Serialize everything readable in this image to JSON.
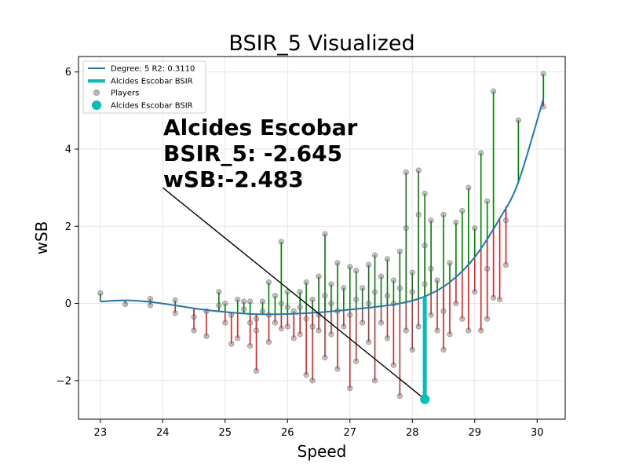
{
  "chart_data": {
    "type": "scatter",
    "title": "BSIR_5 Visualized",
    "xlabel": "Speed",
    "ylabel": "wSB",
    "xlim": [
      22.65,
      30.45
    ],
    "ylim": [
      -3.0,
      6.4
    ],
    "x_ticks": [
      23,
      24,
      25,
      26,
      27,
      28,
      29,
      30
    ],
    "y_ticks": [
      -2,
      0,
      2,
      4,
      6
    ],
    "x_tick_labels": [
      "23",
      "24",
      "25",
      "26",
      "27",
      "28",
      "29",
      "30"
    ],
    "y_tick_labels": [
      "−2",
      "0",
      "2",
      "4",
      "6"
    ],
    "grid": true,
    "legend_position": "top-left",
    "legend": [
      {
        "label": "Degree: 5 R2: 0.3110",
        "kind": "line",
        "color": "#1f77b4"
      },
      {
        "label": "Alcides Escobar BSIR",
        "kind": "thick-line",
        "color": "#00bfbf"
      },
      {
        "label": "Players",
        "kind": "marker",
        "color": "#808080"
      },
      {
        "label": "Alcides Escobar BSIR",
        "kind": "big-marker",
        "color": "#00bfbf"
      }
    ],
    "fit_curve": {
      "name": "Degree: 5 R2: 0.3110",
      "color": "#1f77b4",
      "x": [
        23.0,
        23.4,
        23.8,
        24.2,
        24.6,
        25.0,
        25.4,
        25.8,
        26.2,
        26.6,
        27.0,
        27.4,
        27.8,
        28.2,
        28.6,
        29.0,
        29.4,
        29.7,
        30.1
      ],
      "y": [
        0.05,
        0.08,
        0.04,
        -0.05,
        -0.15,
        -0.22,
        -0.27,
        -0.28,
        -0.26,
        -0.22,
        -0.16,
        -0.09,
        0.0,
        0.18,
        0.55,
        1.2,
        2.2,
        3.15,
        5.3
      ]
    },
    "highlight": {
      "annotation_lines": [
        "Alcides Escobar",
        "BSIR_5: -2.645",
        "wSB:-2.483"
      ],
      "point": {
        "x": 28.2,
        "y": -2.483
      },
      "fit_y": 0.17,
      "arrow_start": {
        "x": 24.0,
        "y": 3.0
      },
      "color": "#00bfbf"
    },
    "players": [
      {
        "x": 23.0,
        "y": 0.27
      },
      {
        "x": 23.4,
        "y": -0.02
      },
      {
        "x": 23.8,
        "y": 0.12
      },
      {
        "x": 23.8,
        "y": -0.05
      },
      {
        "x": 24.2,
        "y": 0.08
      },
      {
        "x": 24.2,
        "y": -0.25
      },
      {
        "x": 24.5,
        "y": -0.35
      },
      {
        "x": 24.5,
        "y": -0.7
      },
      {
        "x": 24.7,
        "y": -0.2
      },
      {
        "x": 24.7,
        "y": -0.85
      },
      {
        "x": 24.9,
        "y": 0.3
      },
      {
        "x": 24.9,
        "y": -0.05
      },
      {
        "x": 25.0,
        "y": -0.5
      },
      {
        "x": 25.0,
        "y": 0.0
      },
      {
        "x": 25.1,
        "y": -1.05
      },
      {
        "x": 25.1,
        "y": -0.3
      },
      {
        "x": 25.2,
        "y": 0.1
      },
      {
        "x": 25.2,
        "y": -0.9
      },
      {
        "x": 25.3,
        "y": 0.05
      },
      {
        "x": 25.3,
        "y": -0.15
      },
      {
        "x": 25.4,
        "y": -0.5
      },
      {
        "x": 25.4,
        "y": 0.05
      },
      {
        "x": 25.4,
        "y": -1.1
      },
      {
        "x": 25.5,
        "y": -0.4
      },
      {
        "x": 25.5,
        "y": -1.75
      },
      {
        "x": 25.5,
        "y": -0.7
      },
      {
        "x": 25.6,
        "y": 0.05
      },
      {
        "x": 25.6,
        "y": -0.2
      },
      {
        "x": 25.7,
        "y": 0.55
      },
      {
        "x": 25.7,
        "y": -0.3
      },
      {
        "x": 25.7,
        "y": -1.0
      },
      {
        "x": 25.8,
        "y": 0.2
      },
      {
        "x": 25.8,
        "y": -0.5
      },
      {
        "x": 25.9,
        "y": 1.6
      },
      {
        "x": 25.9,
        "y": -0.65
      },
      {
        "x": 25.9,
        "y": 0.0
      },
      {
        "x": 26.0,
        "y": -0.1
      },
      {
        "x": 26.0,
        "y": 0.3
      },
      {
        "x": 26.0,
        "y": -0.6
      },
      {
        "x": 26.1,
        "y": -0.2
      },
      {
        "x": 26.1,
        "y": -0.9
      },
      {
        "x": 26.2,
        "y": -0.1
      },
      {
        "x": 26.2,
        "y": 0.3
      },
      {
        "x": 26.2,
        "y": -0.8
      },
      {
        "x": 26.3,
        "y": 0.55
      },
      {
        "x": 26.3,
        "y": -1.85
      },
      {
        "x": 26.3,
        "y": -0.4
      },
      {
        "x": 26.4,
        "y": -2.0
      },
      {
        "x": 26.4,
        "y": 0.1
      },
      {
        "x": 26.4,
        "y": -0.6
      },
      {
        "x": 26.5,
        "y": 0.7
      },
      {
        "x": 26.5,
        "y": -0.3
      },
      {
        "x": 26.5,
        "y": -0.7
      },
      {
        "x": 26.6,
        "y": 1.8
      },
      {
        "x": 26.6,
        "y": 0.2
      },
      {
        "x": 26.6,
        "y": -1.4
      },
      {
        "x": 26.7,
        "y": 0.0
      },
      {
        "x": 26.7,
        "y": -0.8
      },
      {
        "x": 26.7,
        "y": 0.5
      },
      {
        "x": 26.8,
        "y": 1.05
      },
      {
        "x": 26.8,
        "y": -0.2
      },
      {
        "x": 26.8,
        "y": -1.7
      },
      {
        "x": 26.9,
        "y": 0.4
      },
      {
        "x": 26.9,
        "y": -0.6
      },
      {
        "x": 27.0,
        "y": 0.95
      },
      {
        "x": 27.0,
        "y": -2.2
      },
      {
        "x": 27.0,
        "y": -0.3
      },
      {
        "x": 27.1,
        "y": 0.85
      },
      {
        "x": 27.1,
        "y": -1.5
      },
      {
        "x": 27.1,
        "y": 0.1
      },
      {
        "x": 27.2,
        "y": -0.5
      },
      {
        "x": 27.2,
        "y": 0.4
      },
      {
        "x": 27.3,
        "y": 1.0
      },
      {
        "x": 27.3,
        "y": -1.0
      },
      {
        "x": 27.3,
        "y": 0.0
      },
      {
        "x": 27.4,
        "y": 1.25
      },
      {
        "x": 27.4,
        "y": -2.0
      },
      {
        "x": 27.4,
        "y": 0.3
      },
      {
        "x": 27.5,
        "y": -0.5
      },
      {
        "x": 27.5,
        "y": 0.7
      },
      {
        "x": 27.6,
        "y": 1.15
      },
      {
        "x": 27.6,
        "y": -0.9
      },
      {
        "x": 27.6,
        "y": 0.2
      },
      {
        "x": 27.7,
        "y": 0.6
      },
      {
        "x": 27.7,
        "y": -1.6
      },
      {
        "x": 27.7,
        "y": 0.0
      },
      {
        "x": 27.8,
        "y": 1.35
      },
      {
        "x": 27.8,
        "y": -2.4
      },
      {
        "x": 27.8,
        "y": 0.4
      },
      {
        "x": 27.9,
        "y": 3.4
      },
      {
        "x": 27.9,
        "y": -0.7
      },
      {
        "x": 27.9,
        "y": 1.95
      },
      {
        "x": 28.0,
        "y": 0.3
      },
      {
        "x": 28.0,
        "y": -1.2
      },
      {
        "x": 28.0,
        "y": 0.8
      },
      {
        "x": 28.1,
        "y": 3.45
      },
      {
        "x": 28.1,
        "y": 2.3
      },
      {
        "x": 28.1,
        "y": -0.6
      },
      {
        "x": 28.2,
        "y": 2.85
      },
      {
        "x": 28.2,
        "y": 1.5
      },
      {
        "x": 28.2,
        "y": 0.5
      },
      {
        "x": 28.3,
        "y": 2.15
      },
      {
        "x": 28.3,
        "y": 0.9
      },
      {
        "x": 28.3,
        "y": -0.3
      },
      {
        "x": 28.4,
        "y": -0.7
      },
      {
        "x": 28.4,
        "y": 0.6
      },
      {
        "x": 28.5,
        "y": 2.3
      },
      {
        "x": 28.5,
        "y": -1.2
      },
      {
        "x": 28.5,
        "y": -0.2
      },
      {
        "x": 28.6,
        "y": 1.05
      },
      {
        "x": 28.6,
        "y": -0.8
      },
      {
        "x": 28.7,
        "y": 2.1
      },
      {
        "x": 28.7,
        "y": 0.0
      },
      {
        "x": 28.8,
        "y": 2.4
      },
      {
        "x": 28.8,
        "y": -0.4
      },
      {
        "x": 28.9,
        "y": 3.0
      },
      {
        "x": 28.9,
        "y": -0.7
      },
      {
        "x": 29.0,
        "y": 1.95
      },
      {
        "x": 29.0,
        "y": 0.3
      },
      {
        "x": 29.1,
        "y": 3.9
      },
      {
        "x": 29.1,
        "y": -0.7
      },
      {
        "x": 29.2,
        "y": 2.65
      },
      {
        "x": 29.2,
        "y": 0.9
      },
      {
        "x": 29.2,
        "y": -0.4
      },
      {
        "x": 29.3,
        "y": 5.5
      },
      {
        "x": 29.3,
        "y": 0.15
      },
      {
        "x": 29.4,
        "y": 0.1
      },
      {
        "x": 29.5,
        "y": 2.15
      },
      {
        "x": 29.5,
        "y": 1.0
      },
      {
        "x": 29.7,
        "y": 4.75
      },
      {
        "x": 30.1,
        "y": 5.95
      },
      {
        "x": 30.1,
        "y": 5.1
      }
    ]
  }
}
